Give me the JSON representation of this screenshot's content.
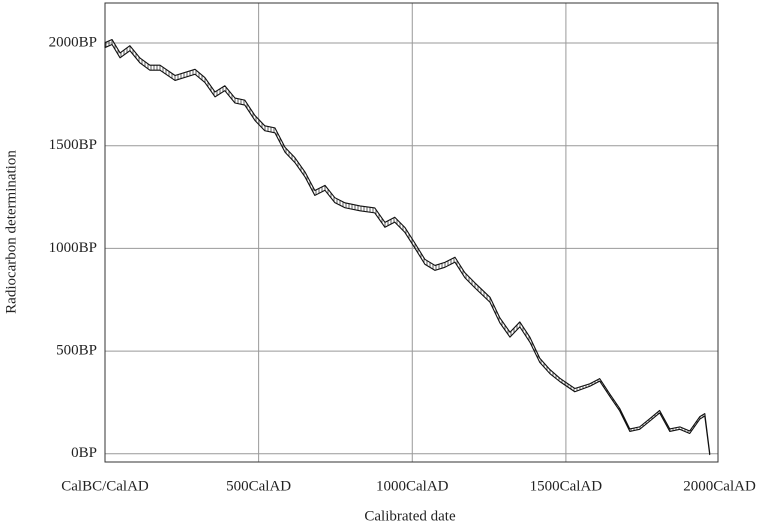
{
  "chart_data": {
    "type": "band",
    "xlabel": "Calibrated date",
    "ylabel": "Radiocarbon determination",
    "x": [
      0,
      23,
      49,
      81,
      114,
      146,
      179,
      228,
      293,
      325,
      358,
      390,
      423,
      455,
      488,
      520,
      553,
      586,
      618,
      651,
      683,
      716,
      748,
      781,
      830,
      878,
      911,
      943,
      976,
      1008,
      1041,
      1074,
      1106,
      1139,
      1171,
      1204,
      1253,
      1285,
      1318,
      1350,
      1383,
      1415,
      1448,
      1480,
      1529,
      1578,
      1610,
      1643,
      1675,
      1708,
      1740,
      1773,
      1805,
      1838,
      1871,
      1903,
      1936,
      1952,
      1968
    ],
    "values": [
      1990,
      2005,
      1940,
      1975,
      1915,
      1880,
      1880,
      1830,
      1860,
      1820,
      1750,
      1780,
      1720,
      1710,
      1635,
      1585,
      1575,
      1480,
      1430,
      1360,
      1270,
      1295,
      1235,
      1210,
      1195,
      1185,
      1115,
      1140,
      1090,
      1015,
      935,
      905,
      920,
      945,
      870,
      820,
      750,
      650,
      580,
      630,
      555,
      455,
      400,
      360,
      310,
      335,
      360,
      285,
      215,
      115,
      125,
      165,
      205,
      115,
      125,
      105,
      175,
      190,
      0
    ],
    "errors": [
      12,
      12,
      12,
      12,
      12,
      12,
      12,
      12,
      12,
      12,
      12,
      12,
      12,
      12,
      12,
      12,
      12,
      12,
      12,
      12,
      12,
      12,
      12,
      12,
      12,
      12,
      12,
      12,
      12,
      12,
      12,
      12,
      12,
      12,
      12,
      12,
      12,
      12,
      12,
      12,
      12,
      10,
      10,
      8,
      8,
      6,
      6,
      6,
      6,
      6,
      6,
      6,
      6,
      6,
      6,
      6,
      6,
      6,
      4
    ],
    "xlim": [
      0,
      1995
    ],
    "ylim": [
      -40,
      2195
    ],
    "xticks": [
      {
        "value": 0,
        "label": "CalBC/CalAD"
      },
      {
        "value": 500,
        "label": "500CalAD"
      },
      {
        "value": 1000,
        "label": "1000CalAD"
      },
      {
        "value": 1500,
        "label": "1500CalAD"
      },
      {
        "value": 2000,
        "label": "2000CalAD"
      }
    ],
    "yticks": [
      {
        "value": 0,
        "label": "0BP"
      },
      {
        "value": 500,
        "label": "500BP"
      },
      {
        "value": 1000,
        "label": "1000BP"
      },
      {
        "value": 1500,
        "label": "1500BP"
      },
      {
        "value": 2000,
        "label": "2000BP"
      }
    ],
    "grid": true,
    "color": "#111111"
  }
}
